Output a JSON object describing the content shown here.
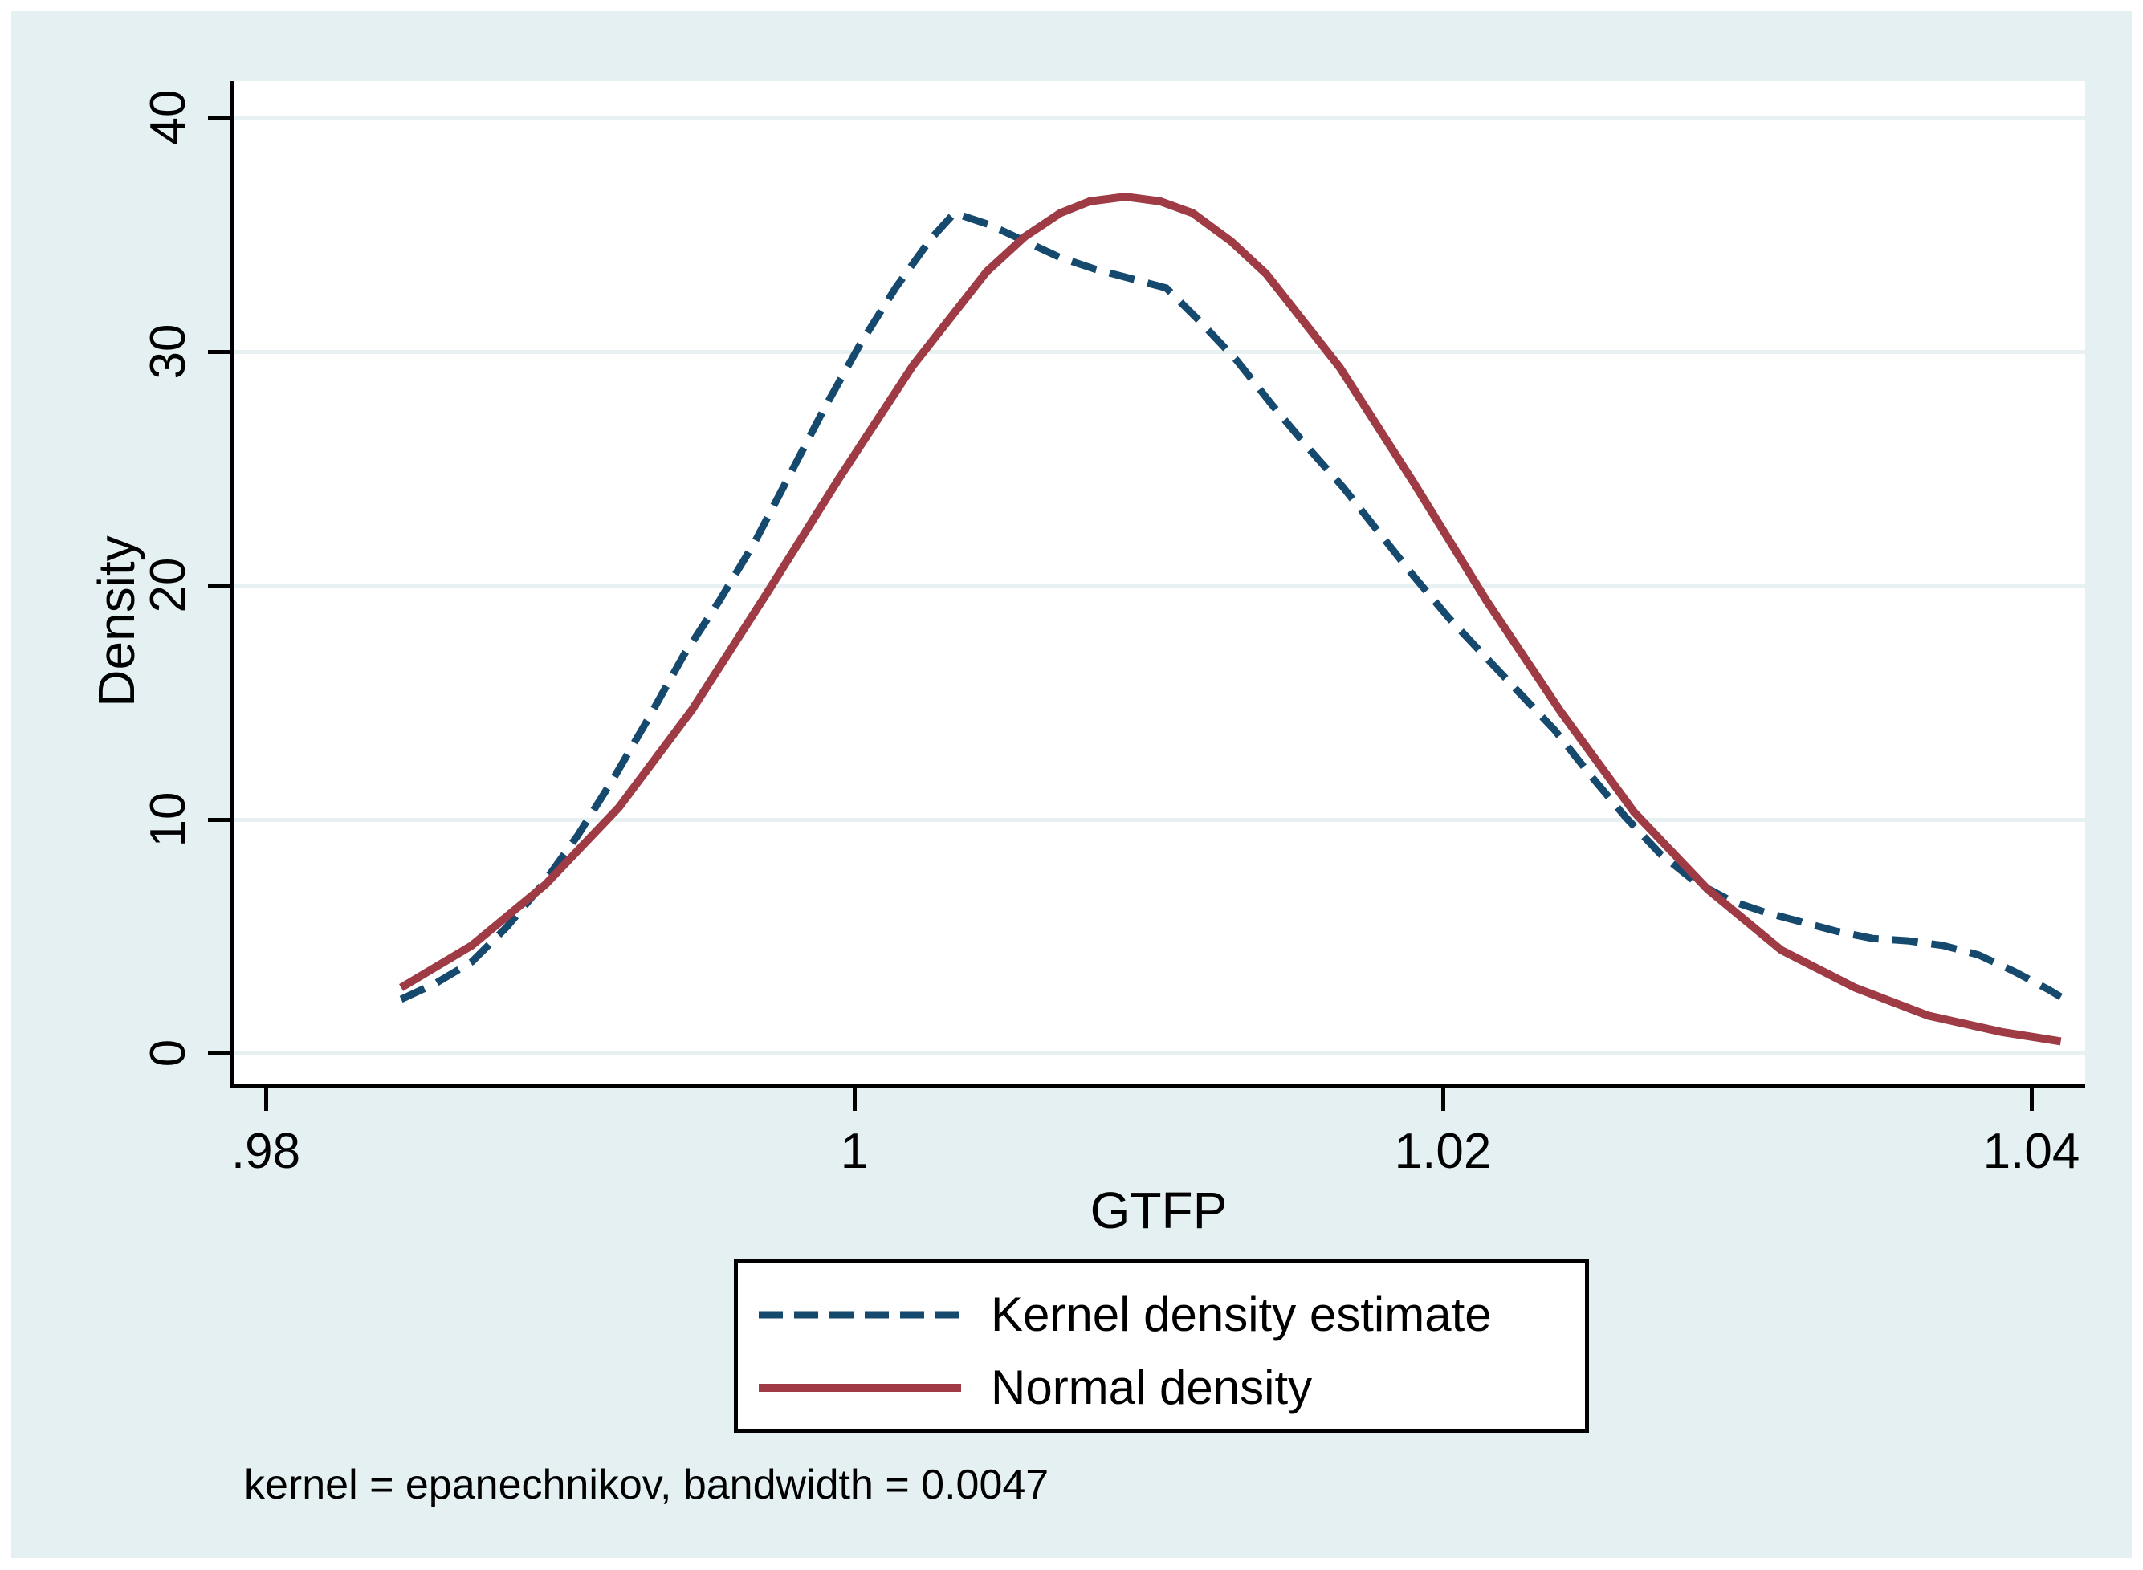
{
  "chart_data": {
    "type": "line",
    "title": "",
    "xlabel": "GTFP",
    "ylabel": "Density",
    "note": "kernel = epanechnikov, bandwidth = 0.0047",
    "xlim": [
      0.9789,
      1.0418
    ],
    "ylim": [
      -1.4,
      41.5
    ],
    "grid": "horizontal",
    "legend_position": "bottom-center",
    "x_ticks": [
      {
        "value": 0.98,
        "label": ".98"
      },
      {
        "value": 1.0,
        "label": "1"
      },
      {
        "value": 1.02,
        "label": "1.02"
      },
      {
        "value": 1.04,
        "label": "1.04"
      }
    ],
    "y_ticks": [
      {
        "value": 0,
        "label": "0"
      },
      {
        "value": 10,
        "label": "10"
      },
      {
        "value": 20,
        "label": "20"
      },
      {
        "value": 30,
        "label": "30"
      },
      {
        "value": 40,
        "label": "40"
      }
    ],
    "series": [
      {
        "name": "Kernel density estimate",
        "color": "#15496e",
        "dash": true,
        "points": [
          [
            0.9846,
            2.3
          ],
          [
            0.9858,
            3.0
          ],
          [
            0.987,
            3.9
          ],
          [
            0.9882,
            5.4
          ],
          [
            0.9894,
            7.2
          ],
          [
            0.9906,
            9.3
          ],
          [
            0.9918,
            11.7
          ],
          [
            0.993,
            14.3
          ],
          [
            0.9942,
            17.0
          ],
          [
            0.9954,
            19.3
          ],
          [
            0.9966,
            21.8
          ],
          [
            0.9978,
            24.7
          ],
          [
            0.999,
            27.6
          ],
          [
            1.0002,
            30.3
          ],
          [
            1.0014,
            32.7
          ],
          [
            1.0026,
            34.8
          ],
          [
            1.0034,
            35.9
          ],
          [
            1.0046,
            35.4
          ],
          [
            1.0058,
            34.7
          ],
          [
            1.007,
            34.0
          ],
          [
            1.0082,
            33.5
          ],
          [
            1.0094,
            33.1
          ],
          [
            1.0106,
            32.7
          ],
          [
            1.0118,
            31.2
          ],
          [
            1.013,
            29.6
          ],
          [
            1.0142,
            27.7
          ],
          [
            1.0154,
            25.9
          ],
          [
            1.0166,
            24.2
          ],
          [
            1.0178,
            22.3
          ],
          [
            1.019,
            20.4
          ],
          [
            1.0202,
            18.6
          ],
          [
            1.0214,
            17.0
          ],
          [
            1.0226,
            15.4
          ],
          [
            1.0238,
            13.8
          ],
          [
            1.025,
            11.9
          ],
          [
            1.0262,
            10.1
          ],
          [
            1.0274,
            8.5
          ],
          [
            1.0286,
            7.3
          ],
          [
            1.0298,
            6.5
          ],
          [
            1.031,
            6.0
          ],
          [
            1.0322,
            5.6
          ],
          [
            1.0334,
            5.2
          ],
          [
            1.0346,
            4.9
          ],
          [
            1.0358,
            4.8
          ],
          [
            1.037,
            4.6
          ],
          [
            1.0382,
            4.2
          ],
          [
            1.0394,
            3.5
          ],
          [
            1.0406,
            2.7
          ],
          [
            1.041,
            2.4
          ]
        ]
      },
      {
        "name": "Normal density",
        "color": "#9e3b44",
        "dash": false,
        "points": [
          [
            0.9846,
            2.8
          ],
          [
            0.987,
            4.6
          ],
          [
            0.9895,
            7.2
          ],
          [
            0.992,
            10.5
          ],
          [
            0.9945,
            14.7
          ],
          [
            0.997,
            19.6
          ],
          [
            0.9995,
            24.6
          ],
          [
            1.002,
            29.4
          ],
          [
            1.0045,
            33.4
          ],
          [
            1.0058,
            34.9
          ],
          [
            1.007,
            35.9
          ],
          [
            1.008,
            36.4
          ],
          [
            1.0092,
            36.6
          ],
          [
            1.0104,
            36.4
          ],
          [
            1.0115,
            35.9
          ],
          [
            1.0128,
            34.7
          ],
          [
            1.014,
            33.3
          ],
          [
            1.0165,
            29.3
          ],
          [
            1.019,
            24.4
          ],
          [
            1.0215,
            19.3
          ],
          [
            1.024,
            14.6
          ],
          [
            1.0265,
            10.3
          ],
          [
            1.029,
            7.0
          ],
          [
            1.0315,
            4.4
          ],
          [
            1.034,
            2.8
          ],
          [
            1.0365,
            1.6
          ],
          [
            1.039,
            0.9
          ],
          [
            1.041,
            0.5
          ]
        ]
      }
    ]
  }
}
